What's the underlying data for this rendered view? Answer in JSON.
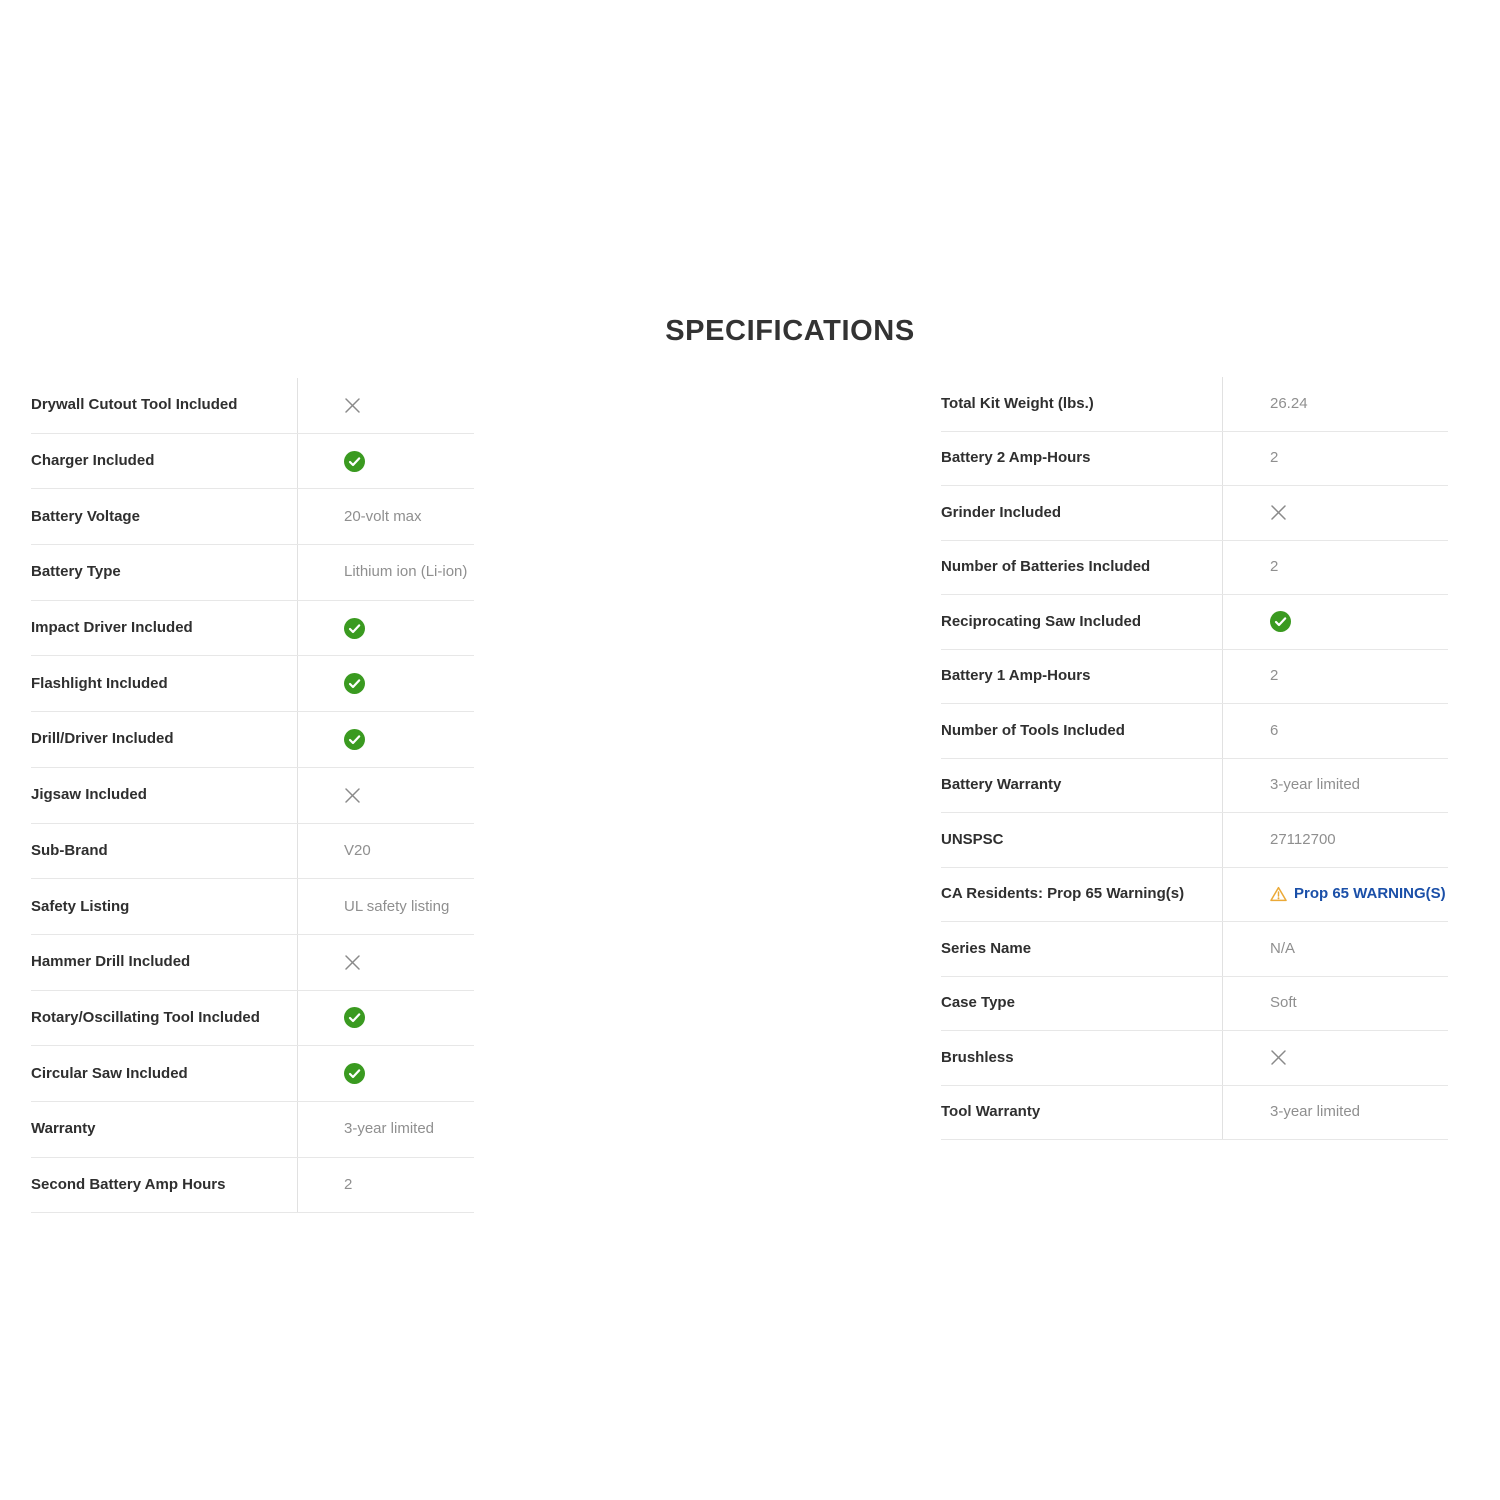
{
  "title": "SPECIFICATIONS",
  "colors": {
    "check_green": "#3a9a20",
    "cross_gray": "#8a8a8a",
    "link_blue": "#1a4fa8",
    "warning_orange": "#eba937",
    "label_text": "#2f2f2f",
    "value_text": "#8f8f8f"
  },
  "left_table": {
    "rows": [
      {
        "label": "Drywall Cutout Tool Included",
        "type": "cross"
      },
      {
        "label": "Charger Included",
        "type": "check"
      },
      {
        "label": "Battery Voltage",
        "type": "text",
        "value": "20-volt max"
      },
      {
        "label": "Battery Type",
        "type": "text",
        "value": "Lithium ion (Li-ion)"
      },
      {
        "label": "Impact Driver Included",
        "type": "check"
      },
      {
        "label": "Flashlight Included",
        "type": "check"
      },
      {
        "label": "Drill/Driver Included",
        "type": "check"
      },
      {
        "label": "Jigsaw Included",
        "type": "cross"
      },
      {
        "label": "Sub-Brand",
        "type": "text",
        "value": "V20"
      },
      {
        "label": "Safety Listing",
        "type": "text",
        "value": "UL safety listing"
      },
      {
        "label": "Hammer Drill Included",
        "type": "cross"
      },
      {
        "label": "Rotary/Oscillating Tool Included",
        "type": "check"
      },
      {
        "label": "Circular Saw Included",
        "type": "check"
      },
      {
        "label": "Warranty",
        "type": "text",
        "value": "3-year limited"
      },
      {
        "label": "Second Battery Amp Hours",
        "type": "text",
        "value": "2"
      }
    ]
  },
  "right_table": {
    "rows": [
      {
        "label": "Total Kit Weight (lbs.)",
        "type": "text",
        "value": "26.24"
      },
      {
        "label": "Battery 2 Amp-Hours",
        "type": "text",
        "value": "2"
      },
      {
        "label": "Grinder Included",
        "type": "cross"
      },
      {
        "label": "Number of Batteries Included",
        "type": "text",
        "value": "2"
      },
      {
        "label": "Reciprocating Saw Included",
        "type": "check"
      },
      {
        "label": "Battery 1 Amp-Hours",
        "type": "text",
        "value": "2"
      },
      {
        "label": "Number of Tools Included",
        "type": "text",
        "value": "6"
      },
      {
        "label": "Battery Warranty",
        "type": "text",
        "value": "3-year limited"
      },
      {
        "label": "UNSPSC",
        "type": "text",
        "value": "27112700"
      },
      {
        "label": "CA Residents: Prop 65 Warning(s)",
        "type": "warning_link",
        "value": "Prop 65 WARNING(S)"
      },
      {
        "label": "Series Name",
        "type": "text",
        "value": "N/A"
      },
      {
        "label": "Case Type",
        "type": "text",
        "value": "Soft"
      },
      {
        "label": "Brushless",
        "type": "cross"
      },
      {
        "label": "Tool Warranty",
        "type": "text",
        "value": "3-year limited"
      }
    ]
  }
}
